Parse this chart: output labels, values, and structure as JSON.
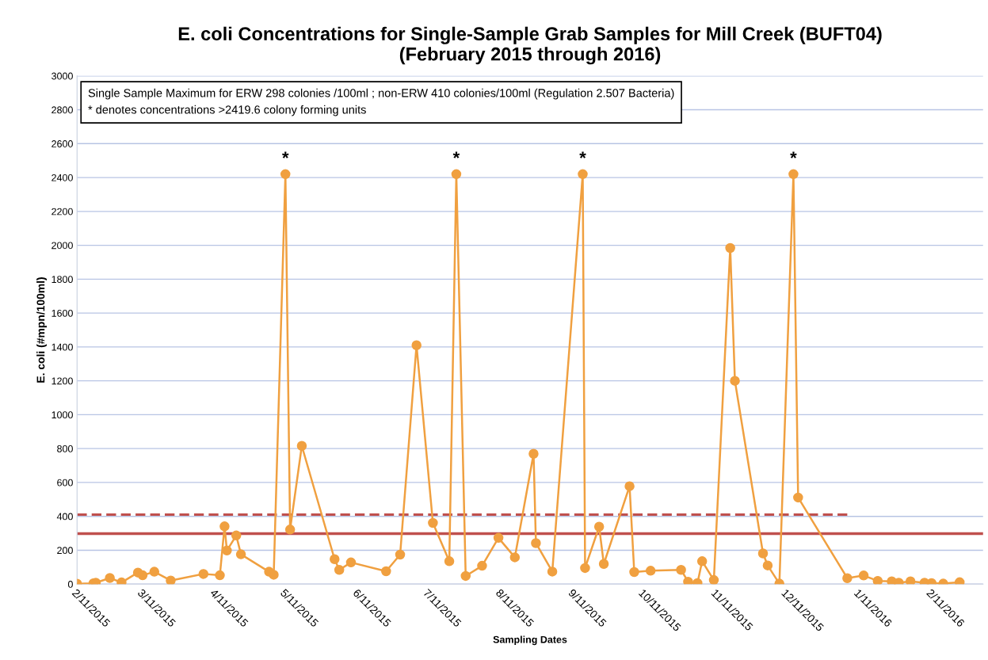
{
  "chart_data": {
    "type": "line",
    "title": "E. coli Concentrations for Single-Sample Grab Samples for Mill Creek (BUFT04)\n(February 2015 through 2016)",
    "xlabel": "Sampling Dates",
    "ylabel": "E. coli (#mpn/100ml)",
    "series": [
      {
        "color": "#f0a040",
        "marker": "circle",
        "line_style": "solid",
        "x": [
          "2015-02-11",
          "2015-02-18",
          "2015-02-19",
          "2015-02-25",
          "2015-03-02",
          "2015-03-09",
          "2015-03-11",
          "2015-03-16",
          "2015-03-23",
          "2015-04-06",
          "2015-04-13",
          "2015-04-15",
          "2015-04-16",
          "2015-04-20",
          "2015-04-22",
          "2015-05-04",
          "2015-05-06",
          "2015-05-11",
          "2015-05-13",
          "2015-05-18",
          "2015-06-01",
          "2015-06-03",
          "2015-06-08",
          "2015-06-23",
          "2015-06-29",
          "2015-07-06",
          "2015-07-13",
          "2015-07-20",
          "2015-07-23",
          "2015-07-27",
          "2015-08-03",
          "2015-08-10",
          "2015-08-17",
          "2015-08-25",
          "2015-08-26",
          "2015-09-02",
          "2015-09-15",
          "2015-09-16",
          "2015-09-22",
          "2015-09-24",
          "2015-10-05",
          "2015-10-07",
          "2015-10-14",
          "2015-10-27",
          "2015-10-30",
          "2015-11-03",
          "2015-11-05",
          "2015-11-10",
          "2015-11-17",
          "2015-11-19",
          "2015-12-01",
          "2015-12-03",
          "2015-12-08",
          "2015-12-14",
          "2015-12-16",
          "2016-01-06",
          "2016-01-13",
          "2016-01-19",
          "2016-01-25",
          "2016-01-28",
          "2016-02-02",
          "2016-02-08",
          "2016-02-11",
          "2016-02-16",
          "2016-02-23"
        ],
        "values": [
          2,
          5,
          8,
          36,
          10,
          68,
          52,
          73,
          21,
          60,
          52,
          341,
          198,
          287,
          176,
          73,
          55,
          2420,
          322,
          816,
          147,
          84,
          128,
          76,
          174,
          1410,
          361,
          135,
          2420,
          48,
          108,
          273,
          158,
          769,
          242,
          74,
          2420,
          95,
          339,
          119,
          578,
          71,
          79,
          84,
          14,
          6,
          135,
          24,
          1984,
          1200,
          181,
          110,
          3,
          2420,
          511,
          35,
          51,
          19,
          16,
          8,
          16,
          8,
          6,
          3,
          11
        ]
      },
      {
        "color": "#c0504d",
        "type": "line",
        "marker": "none",
        "line_style": "dashed",
        "x": [
          "2015-02-11",
          "2016-01-06"
        ],
        "values": [
          410,
          410
        ]
      }
    ],
    "ref_lines": [
      {
        "axis": "y",
        "value": 298,
        "color": "#c0504d",
        "line_style": "solid"
      }
    ],
    "xlim": [
      "2015-02-11",
      "2016-03-04"
    ],
    "xticks": [
      {
        "value": "2015-02-11",
        "label": "2/11/2015"
      },
      {
        "value": "2015-03-11",
        "label": "3/11/2015"
      },
      {
        "value": "2015-04-11",
        "label": "4/11/2015"
      },
      {
        "value": "2015-05-11",
        "label": "5/11/2015"
      },
      {
        "value": "2015-06-11",
        "label": "6/11/2015"
      },
      {
        "value": "2015-07-11",
        "label": "7/11/2015"
      },
      {
        "value": "2015-08-11",
        "label": "8/11/2015"
      },
      {
        "value": "2015-09-11",
        "label": "9/11/2015"
      },
      {
        "value": "2015-10-11",
        "label": "10/11/2015"
      },
      {
        "value": "2015-11-11",
        "label": "11/11/2015"
      },
      {
        "value": "2015-12-11",
        "label": "12/11/2015"
      },
      {
        "value": "2016-01-11",
        "label": "1/11/2016"
      },
      {
        "value": "2016-02-11",
        "label": "2/11/2016"
      }
    ],
    "ylim": [
      0,
      3000
    ],
    "yticks": [
      0,
      200,
      400,
      600,
      800,
      1000,
      1200,
      1400,
      1600,
      1800,
      2000,
      2200,
      2400,
      2600,
      2800,
      3000
    ],
    "grid": "y",
    "legend": false,
    "annotations": [
      "Single Sample Maximum for ERW 298 colonies /100ml ; non-ERW 410 colonies/100ml (Regulation 2.507 Bacteria)\n* denotes concentrations >2419.6 colony forming units",
      {
        "text": "*",
        "x": "2015-05-11",
        "y": 2420
      },
      {
        "text": "*",
        "x": "2015-07-23",
        "y": 2420
      },
      {
        "text": "*",
        "x": "2015-09-15",
        "y": 2420
      },
      {
        "text": "*",
        "x": "2015-12-14",
        "y": 2420
      }
    ]
  }
}
